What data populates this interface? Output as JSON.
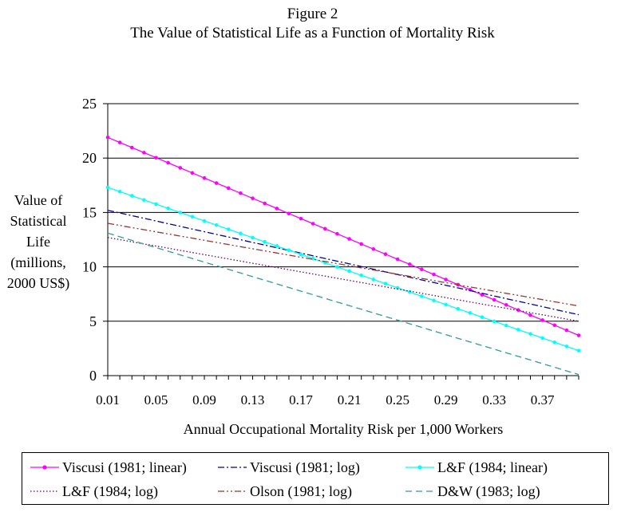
{
  "title_lines": [
    "Figure 2",
    "The Value of Statistical Life as a Function of Mortality Risk"
  ],
  "ylabel_lines": [
    "Value of",
    "Statistical",
    "Life",
    "(millions,",
    "2000 US$)"
  ],
  "xlabel": "Annual Occupational Mortality Risk per 1,000 Workers",
  "colors": {
    "viscusi_linear": "#ff00ff",
    "viscusi_log": "#000099",
    "lf_linear": "#00ffff",
    "lf_log": "#660066",
    "olson_log": "#993333",
    "dw_log": "#339999"
  },
  "chart_data": {
    "type": "line",
    "title": "The Value of Statistical Life as a Function of Mortality Risk",
    "xlabel": "Annual Occupational Mortality Risk per 1,000 Workers",
    "ylabel": "Value of Statistical Life (millions, 2000 US$)",
    "x_start": 0.01,
    "x_step": 0.01,
    "x_count": 40,
    "xlim": [
      0.01,
      0.4
    ],
    "ylim": [
      0,
      25
    ],
    "y_ticks": [
      "0",
      "5",
      "10",
      "15",
      "20",
      "25"
    ],
    "x_ticks": [
      "0.01",
      "0.05",
      "0.09",
      "0.13",
      "0.17",
      "0.21",
      "0.25",
      "0.29",
      "0.33",
      "0.37"
    ],
    "grid": "horizontal",
    "legend_position": "bottom",
    "series": [
      {
        "name": "Viscusi (1981; linear)",
        "color_key": "viscusi_linear",
        "style": "solid-markers",
        "y_start": 21.9,
        "y_end": 3.7
      },
      {
        "name": "Viscusi (1981; log)",
        "color_key": "viscusi_log",
        "style": "dashdot",
        "y_start": 15.2,
        "y_end": 5.6
      },
      {
        "name": "L&F (1984; linear)",
        "color_key": "lf_linear",
        "style": "solid-markers",
        "y_start": 17.3,
        "y_end": 2.3
      },
      {
        "name": "L&F (1984; log)",
        "color_key": "lf_log",
        "style": "dotted",
        "y_start": 12.7,
        "y_end": 5.0
      },
      {
        "name": "Olson (1981; log)",
        "color_key": "olson_log",
        "style": "dashdotdot",
        "y_start": 14.0,
        "y_end": 6.4
      },
      {
        "name": "D&W (1983; log)",
        "color_key": "dw_log",
        "style": "dashed",
        "y_start": 13.1,
        "y_end": 0.1
      }
    ]
  }
}
